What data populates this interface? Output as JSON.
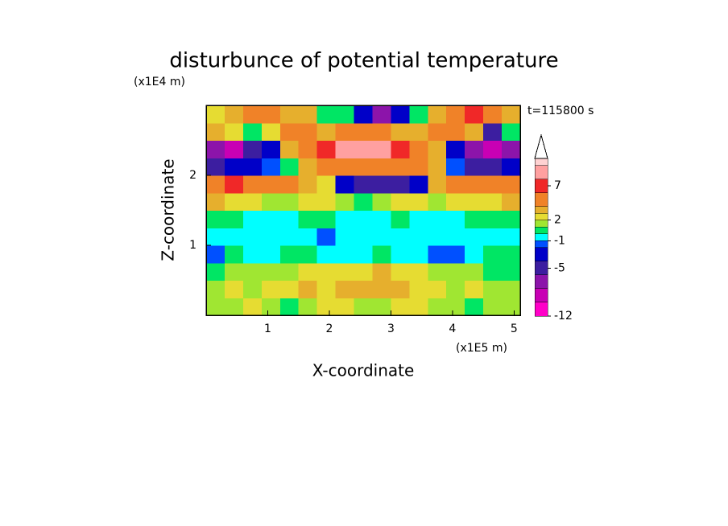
{
  "chart_data": {
    "type": "contour",
    "title": "disturbunce of potential temperature",
    "y_unit_label": "(x1E4 m)",
    "x_unit_label": "(x1E5 m)",
    "time_label": "t=115800 s",
    "x_label": "X-coordinate",
    "y_label": "Z-coordinate",
    "xlim": [
      0,
      5.1
    ],
    "xticks": [
      1,
      2,
      3,
      4,
      5
    ],
    "ylim": [
      0,
      3
    ],
    "yticks": [
      1,
      2
    ],
    "levels": [
      -12,
      -10,
      -8,
      -6,
      -4,
      -2,
      -1,
      0,
      1,
      2,
      3,
      4,
      6,
      8,
      10,
      11
    ],
    "colors": [
      "#ff00c8",
      "#c800b4",
      "#8c14aa",
      "#3c1ea0",
      "#0000c8",
      "#0050ff",
      "#00ffff",
      "#00e664",
      "#a0e632",
      "#e6dc32",
      "#e6af2d",
      "#f08228",
      "#f02828",
      "#ffa0a0",
      "#ffd2d2"
    ],
    "colorbar_ticks": [
      -12,
      -5,
      -1,
      2,
      7
    ],
    "z": [
      [
        1,
        1,
        2,
        1,
        0.5,
        1,
        2,
        2,
        1,
        1,
        2,
        2,
        1,
        1,
        0.5,
        1,
        1
      ],
      [
        1,
        2,
        1,
        2,
        2,
        3,
        2,
        3,
        3,
        3,
        3,
        2,
        2,
        1,
        2,
        1,
        1
      ],
      [
        0.5,
        1,
        1,
        1,
        1,
        2,
        2,
        2,
        2,
        3,
        2,
        2,
        1,
        1,
        1,
        0.5,
        0.5
      ],
      [
        -2,
        0.5,
        -0.5,
        -0.5,
        0.5,
        0.5,
        -0.5,
        -0.5,
        -0.5,
        0.5,
        -0.5,
        -0.5,
        -2,
        -2,
        -0.5,
        0.5,
        0.5
      ],
      [
        -0.5,
        -0.5,
        -0.5,
        -0.5,
        -0.5,
        -0.5,
        -2,
        -0.5,
        -0.5,
        -0.5,
        -0.5,
        -0.5,
        -0.5,
        -0.5,
        -0.5,
        -0.5,
        -0.5
      ],
      [
        0.5,
        0.5,
        -0.5,
        -0.5,
        -0.5,
        0.5,
        0.5,
        -0.5,
        -0.5,
        -0.5,
        0.5,
        -0.5,
        -0.5,
        -0.5,
        0.5,
        0.5,
        0.5
      ],
      [
        3,
        2.5,
        2.5,
        1.5,
        1.5,
        2.5,
        2.5,
        1.5,
        0.5,
        1.5,
        2.5,
        2.5,
        1.5,
        2.5,
        2.5,
        2.5,
        3
      ],
      [
        5,
        7,
        5,
        5,
        4,
        3,
        2.5,
        -3,
        -5,
        -5,
        -5,
        -3,
        3,
        4,
        5,
        5,
        5
      ],
      [
        -5,
        -3,
        -3,
        -1.5,
        0.5,
        3,
        5,
        5,
        5,
        5,
        5,
        5,
        3,
        -1.5,
        -5,
        -5,
        -3
      ],
      [
        -7,
        -9,
        -5,
        -3,
        3,
        5,
        7,
        9,
        9,
        9,
        7,
        5,
        3,
        -3,
        -7,
        -9,
        -7
      ],
      [
        3,
        2.5,
        0.5,
        2.5,
        5,
        5,
        3,
        5,
        5,
        5,
        3,
        3,
        5,
        5,
        3,
        -5,
        0.5
      ],
      [
        2.5,
        3,
        5,
        5,
        3,
        3,
        0.5,
        0.5,
        -3,
        -7,
        -3,
        0.5,
        3,
        5,
        7,
        5,
        3
      ]
    ]
  }
}
